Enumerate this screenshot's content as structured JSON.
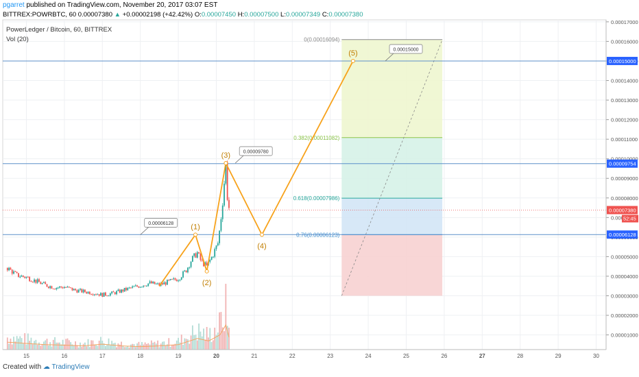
{
  "header": {
    "user": "pgarret",
    "published": "published on TradingView.com, November 20, 2017 03:07 EST",
    "symbol": "BITTREX:POWRBTC, 60",
    "last": "0.00007380",
    "change_arrow": "▲",
    "change": "+0.00002198 (+42.42%)",
    "o_label": "O:",
    "o_value": "0.00007450",
    "h_label": "H:",
    "h_value": "0.00007500",
    "l_label": "L:",
    "l_value": "0.00007349",
    "c_label": "C:",
    "c_value": "0.00007380"
  },
  "legend": {
    "title": "PowerLedger / Bitcoin, 60, BITTREX",
    "vol": "Vol (20)"
  },
  "footer": {
    "created_with": "Created with",
    "brand": "TradingView"
  },
  "colors": {
    "bull": "#26a69a",
    "bear": "#ef5350",
    "wave": "#f7a21b",
    "hline": "#5b8fc9",
    "price_line": "#ef5350",
    "axis_tag": "#2962ff"
  },
  "chart_data": {
    "type": "candlestick",
    "title": "PowerLedger / Bitcoin, 60, BITTREX",
    "x_ticks": [
      "15",
      "16",
      "17",
      "18",
      "19",
      "20",
      "21",
      "22",
      "23",
      "24",
      "25",
      "26",
      "27",
      "28",
      "29",
      "30"
    ],
    "y_ticks": [
      "0.00017000",
      "0.00016000",
      "0.00015000",
      "0.00014000",
      "0.00013000",
      "0.00012000",
      "0.00011000",
      "0.00010000",
      "0.00009000",
      "0.00008000",
      "0.00007000",
      "0.00006000",
      "0.00005000",
      "0.00004000",
      "0.00003000",
      "0.00002000",
      "0.00001000"
    ],
    "ylim": [
      2.5e-06,
      0.000171
    ],
    "current_price": {
      "value": 7.38e-05,
      "label": "0.00007380",
      "countdown": "52:45"
    },
    "horizontal_levels": [
      {
        "value": 0.00015,
        "label": "0.00015000"
      },
      {
        "value": 9.754e-05,
        "label": "0.00009754"
      },
      {
        "value": 6.128e-05,
        "label": "0.00006128"
      }
    ],
    "elliott_waves": [
      {
        "label": "(1)",
        "x": 19.45,
        "y": 6.12e-05
      },
      {
        "label": "(2)",
        "x": 19.75,
        "y": 4.25e-05
      },
      {
        "label": "(3)",
        "x": 20.25,
        "y": 9.78e-05
      },
      {
        "label": "(4)",
        "x": 21.2,
        "y": 6.12e-05
      },
      {
        "label": "(5)",
        "x": 23.6,
        "y": 0.00015
      }
    ],
    "wave_start": {
      "x": 18.5,
      "y": 3.5e-05
    },
    "callouts": [
      {
        "text": "0.00006128",
        "x": 18.0,
        "y": 6.12e-05
      },
      {
        "text": "0.00009780",
        "x": 20.5,
        "y": 9.78e-05
      },
      {
        "text": "0.00015000",
        "x": 24.45,
        "y": 0.00015
      }
    ],
    "fib_retracement": {
      "x_start": 23.3,
      "x_end": 25.95,
      "from": 3e-05,
      "to": 0.00016094,
      "levels": [
        {
          "label": "0(0.00016094)",
          "value": 0.00016094,
          "color": "#888888"
        },
        {
          "label": "0.382(0.00011082)",
          "value": 0.00011082,
          "color": "#8bc34a"
        },
        {
          "label": "0.618(0.00007986)",
          "value": 7.986e-05,
          "color": "#26a69a"
        },
        {
          "label": "0.76(0.00006123)",
          "value": 6.123e-05,
          "color": "#3d8fd1"
        }
      ]
    },
    "candles_summary": {
      "x_range": [
        14.5,
        20.3
      ],
      "series": [
        [
          14.5,
          4.42e-05
        ],
        [
          14.75,
          4.05e-05
        ],
        [
          15.0,
          3.95e-05
        ],
        [
          15.25,
          3.75e-05
        ],
        [
          15.5,
          3.55e-05
        ],
        [
          15.75,
          3.42e-05
        ],
        [
          16.0,
          3.45e-05
        ],
        [
          16.25,
          3.3e-05
        ],
        [
          16.5,
          3.22e-05
        ],
        [
          16.75,
          3.15e-05
        ],
        [
          17.0,
          3.05e-05
        ],
        [
          17.25,
          3.12e-05
        ],
        [
          17.5,
          3.25e-05
        ],
        [
          17.75,
          3.4e-05
        ],
        [
          18.0,
          3.52e-05
        ],
        [
          18.25,
          3.65e-05
        ],
        [
          18.5,
          3.55e-05
        ],
        [
          18.75,
          3.72e-05
        ],
        [
          19.0,
          3.88e-05
        ],
        [
          19.2,
          4.28e-05
        ],
        [
          19.35,
          4.85e-05
        ],
        [
          19.5,
          5.2e-05
        ],
        [
          19.6,
          4.75e-05
        ],
        [
          19.75,
          4.5e-05
        ],
        [
          19.9,
          5.05e-05
        ],
        [
          20.05,
          5.72e-05
        ],
        [
          20.15,
          7.45e-05
        ],
        [
          20.25,
          9.75e-05
        ],
        [
          20.3,
          7.75e-05
        ],
        [
          20.35,
          7.38e-05
        ]
      ]
    },
    "volume_summary": {
      "series": [
        [
          14.5,
          0.3
        ],
        [
          15.0,
          0.25
        ],
        [
          15.5,
          0.2
        ],
        [
          16.0,
          0.18
        ],
        [
          16.5,
          0.15
        ],
        [
          17.0,
          0.22
        ],
        [
          17.5,
          0.15
        ],
        [
          18.0,
          0.12
        ],
        [
          18.5,
          0.15
        ],
        [
          19.0,
          0.2
        ],
        [
          19.5,
          0.45
        ],
        [
          19.8,
          0.35
        ],
        [
          20.1,
          0.6
        ],
        [
          20.25,
          1.0
        ],
        [
          20.35,
          0.4
        ]
      ],
      "ma_color": "#f4a460"
    }
  }
}
